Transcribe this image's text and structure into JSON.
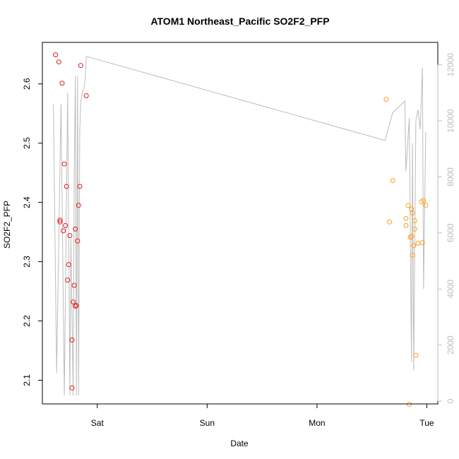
{
  "chart_data": {
    "type": "scatter",
    "title": "ATOM1 Northeast_Pacific SO2F2_PFP",
    "xlabel": "Date",
    "ylabel": "SO2F2_PFP",
    "x_ticks": [
      "Sat",
      "Sun",
      "Mon",
      "Tue"
    ],
    "x_ticks_pos_days": [
      1,
      2,
      3,
      4
    ],
    "xlim_days": [
      0.5,
      4.1
    ],
    "y_left": {
      "ylim": [
        2.06,
        2.67
      ],
      "ticks": [
        2.1,
        2.2,
        2.3,
        2.4,
        2.5,
        2.6
      ]
    },
    "y_right": {
      "ylim": [
        -100,
        12800
      ],
      "ticks": [
        0,
        2000,
        4000,
        6000,
        8000,
        10000,
        12000
      ],
      "color": "#bdbdbd"
    },
    "series": [
      {
        "color": "#e41a1c",
        "points": [
          [
            0.62,
            2.649
          ],
          [
            0.65,
            2.637
          ],
          [
            0.68,
            2.601
          ],
          [
            0.66,
            2.37
          ],
          [
            0.66,
            2.367
          ],
          [
            0.7,
            2.465
          ],
          [
            0.69,
            2.352
          ],
          [
            0.71,
            2.361
          ],
          [
            0.72,
            2.427
          ],
          [
            0.74,
            2.295
          ],
          [
            0.73,
            2.269
          ],
          [
            0.75,
            2.344
          ],
          [
            0.77,
            2.168
          ],
          [
            0.77,
            2.087
          ],
          [
            0.78,
            2.232
          ],
          [
            0.79,
            2.26
          ],
          [
            0.8,
            2.355
          ],
          [
            0.81,
            2.226
          ],
          [
            0.8,
            2.225
          ],
          [
            0.82,
            2.335
          ],
          [
            0.83,
            2.395
          ],
          [
            0.84,
            2.427
          ],
          [
            0.85,
            2.631
          ],
          [
            0.9,
            2.58
          ]
        ]
      },
      {
        "color": "#ff9f1c",
        "points": [
          [
            3.63,
            2.574
          ],
          [
            3.66,
            2.367
          ],
          [
            3.69,
            2.437
          ],
          [
            3.81,
            2.373
          ],
          [
            3.81,
            2.361
          ],
          [
            3.83,
            2.395
          ],
          [
            3.84,
            2.059
          ],
          [
            3.85,
            2.341
          ],
          [
            3.86,
            2.343
          ],
          [
            3.86,
            2.389
          ],
          [
            3.87,
            2.382
          ],
          [
            3.87,
            2.311
          ],
          [
            3.88,
            2.327
          ],
          [
            3.89,
            2.355
          ],
          [
            3.89,
            2.369
          ],
          [
            3.9,
            2.142
          ],
          [
            3.92,
            2.331
          ],
          [
            3.95,
            2.401
          ],
          [
            3.96,
            2.332
          ],
          [
            3.97,
            2.403
          ],
          [
            3.99,
            2.395
          ]
        ]
      }
    ],
    "line_series": {
      "axis": "right",
      "color": "#bdbdbd",
      "points": [
        [
          0.6,
          10600
        ],
        [
          0.63,
          1000
        ],
        [
          0.67,
          10600
        ],
        [
          0.7,
          200
        ],
        [
          0.73,
          11000
        ],
        [
          0.75,
          200
        ],
        [
          0.76,
          5800
        ],
        [
          0.78,
          200
        ],
        [
          0.79,
          8000
        ],
        [
          0.8,
          11600
        ],
        [
          0.81,
          200
        ],
        [
          0.82,
          11600
        ],
        [
          0.83,
          200
        ],
        [
          0.84,
          9600
        ],
        [
          0.85,
          10700
        ],
        [
          0.87,
          11100
        ],
        [
          0.88,
          11200
        ],
        [
          0.89,
          11500
        ],
        [
          0.9,
          12300
        ],
        [
          3.62,
          9300
        ],
        [
          3.69,
          10300
        ],
        [
          3.8,
          10700
        ],
        [
          3.81,
          8200
        ],
        [
          3.84,
          10100
        ],
        [
          3.86,
          1400
        ],
        [
          3.87,
          9200
        ],
        [
          3.88,
          1100
        ],
        [
          3.9,
          10000
        ],
        [
          3.92,
          10400
        ],
        [
          3.94,
          9700
        ],
        [
          3.96,
          11900
        ],
        [
          3.97,
          4000
        ],
        [
          3.99,
          9600
        ]
      ]
    }
  }
}
